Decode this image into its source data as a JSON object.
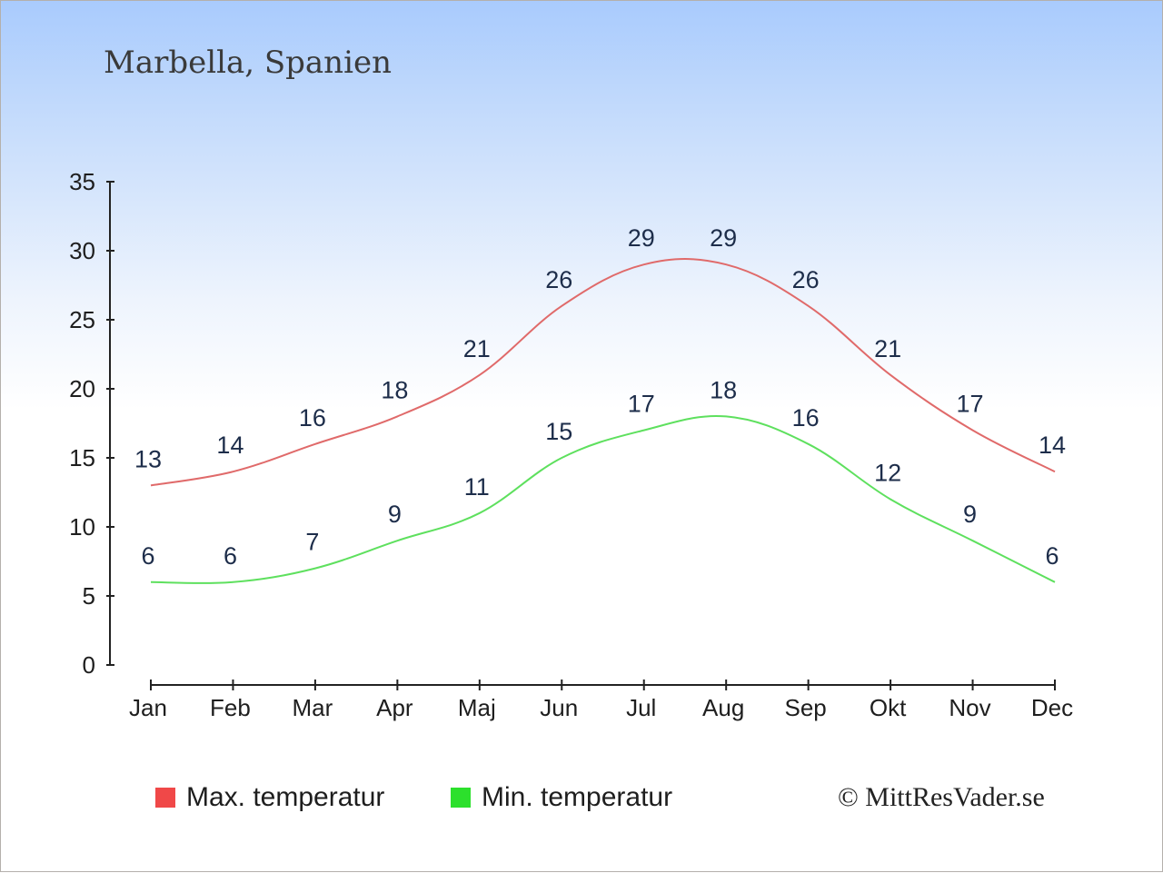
{
  "chart_data": {
    "type": "line",
    "title": "Marbella, Spanien",
    "xlabel": "",
    "ylabel": "",
    "categories": [
      "Jan",
      "Feb",
      "Mar",
      "Apr",
      "Maj",
      "Jun",
      "Jul",
      "Aug",
      "Sep",
      "Okt",
      "Nov",
      "Dec"
    ],
    "ylim": [
      0,
      35
    ],
    "yticks": [
      0,
      5,
      10,
      15,
      20,
      25,
      30,
      35
    ],
    "grid": false,
    "legend_position": "bottom-left",
    "series": [
      {
        "name": "Max. temperatur",
        "color": "#f04848",
        "line_color": "#e06a6a",
        "values": [
          13,
          14,
          16,
          18,
          21,
          26,
          29,
          29,
          26,
          21,
          17,
          14
        ]
      },
      {
        "name": "Min. temperatur",
        "color": "#2ce02c",
        "line_color": "#5ee05e",
        "values": [
          6,
          6,
          7,
          9,
          11,
          15,
          17,
          18,
          16,
          12,
          9,
          6
        ]
      }
    ],
    "credit": "© MittResVader.se"
  }
}
